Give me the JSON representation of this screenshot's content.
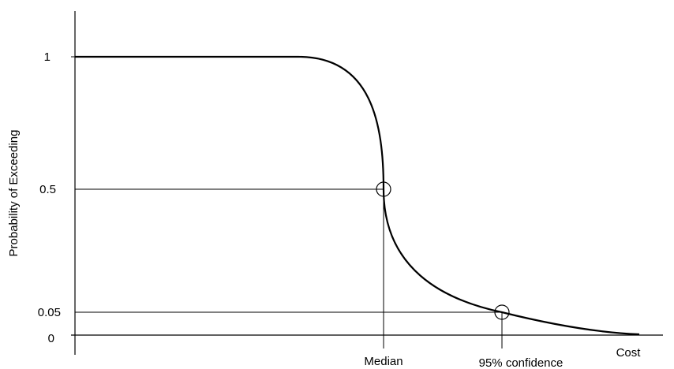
{
  "chart_data": {
    "type": "line",
    "title": "",
    "xlabel": "Cost",
    "ylabel": "Probability of Exceeding",
    "y_ticks": [
      {
        "value": 1,
        "label": "1"
      },
      {
        "value": 0.5,
        "label": "0.5"
      },
      {
        "value": 0.05,
        "label": "0.05"
      },
      {
        "value": 0,
        "label": "0"
      }
    ],
    "x_markers": [
      {
        "name": "median",
        "label": "Median",
        "y": 0.5
      },
      {
        "name": "confidence-95",
        "label": "95% confidence",
        "y": 0.05
      }
    ],
    "series": [
      {
        "curve": "exceedance",
        "x": [
          0,
          0.1,
          0.2,
          0.3,
          0.4,
          0.5,
          0.6,
          0.7,
          0.8,
          0.9,
          1.0
        ],
        "y": [
          1,
          1,
          1,
          0.92,
          0.5,
          0.2,
          0.09,
          0.05,
          0.02,
          0.005,
          0
        ]
      }
    ],
    "grid": false,
    "legend": "none"
  }
}
